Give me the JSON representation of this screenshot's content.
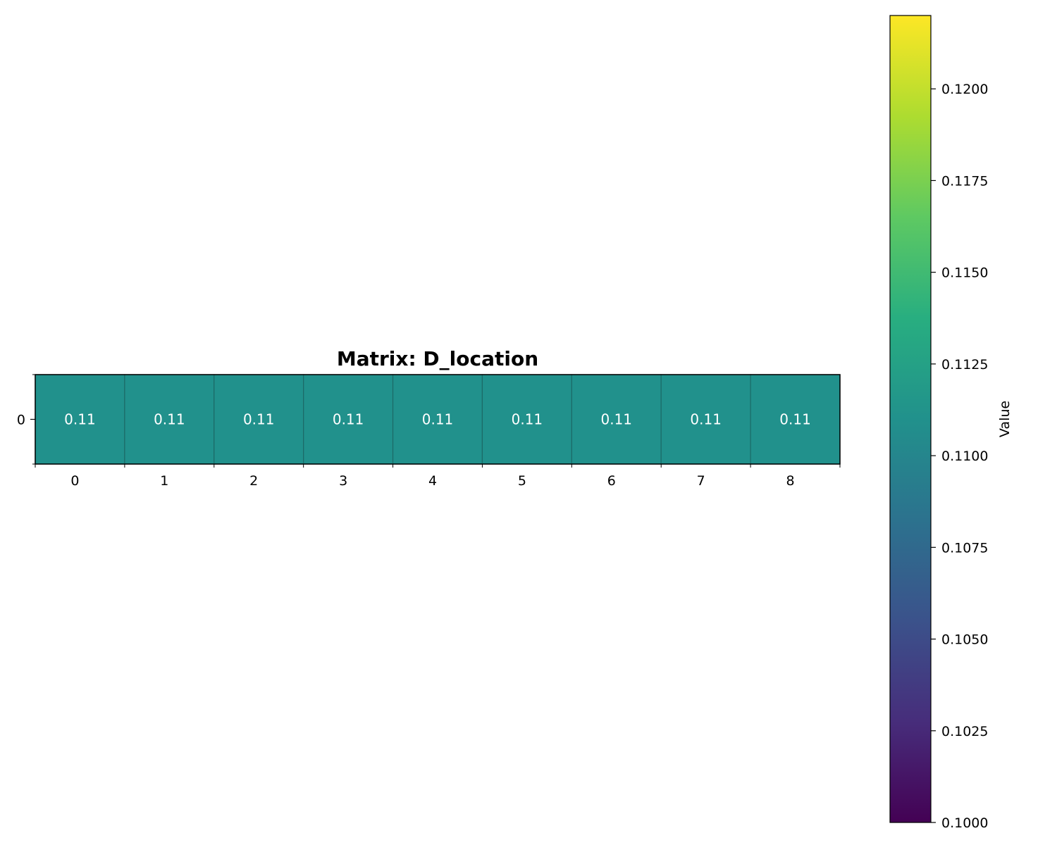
{
  "chart_data": {
    "type": "heatmap",
    "title": "Matrix: D_location",
    "rows": [
      0
    ],
    "columns": [
      0,
      1,
      2,
      3,
      4,
      5,
      6,
      7,
      8
    ],
    "values": [
      [
        0.111,
        0.111,
        0.111,
        0.111,
        0.111,
        0.111,
        0.111,
        0.111,
        0.111
      ]
    ],
    "cell_labels": [
      [
        "0.11",
        "0.11",
        "0.11",
        "0.11",
        "0.11",
        "0.11",
        "0.11",
        "0.11",
        "0.11"
      ]
    ],
    "colormap": "viridis",
    "cell_color": "#21918c",
    "colorbar": {
      "label": "Value",
      "range": [
        0.1,
        0.122
      ],
      "ticks": [
        0.1,
        0.1025,
        0.105,
        0.1075,
        0.11,
        0.1125,
        0.115,
        0.1175,
        0.12
      ],
      "tick_labels": [
        "0.1000",
        "0.1025",
        "0.1050",
        "0.1075",
        "0.1100",
        "0.1125",
        "0.1150",
        "0.1175",
        "0.1200"
      ]
    }
  }
}
